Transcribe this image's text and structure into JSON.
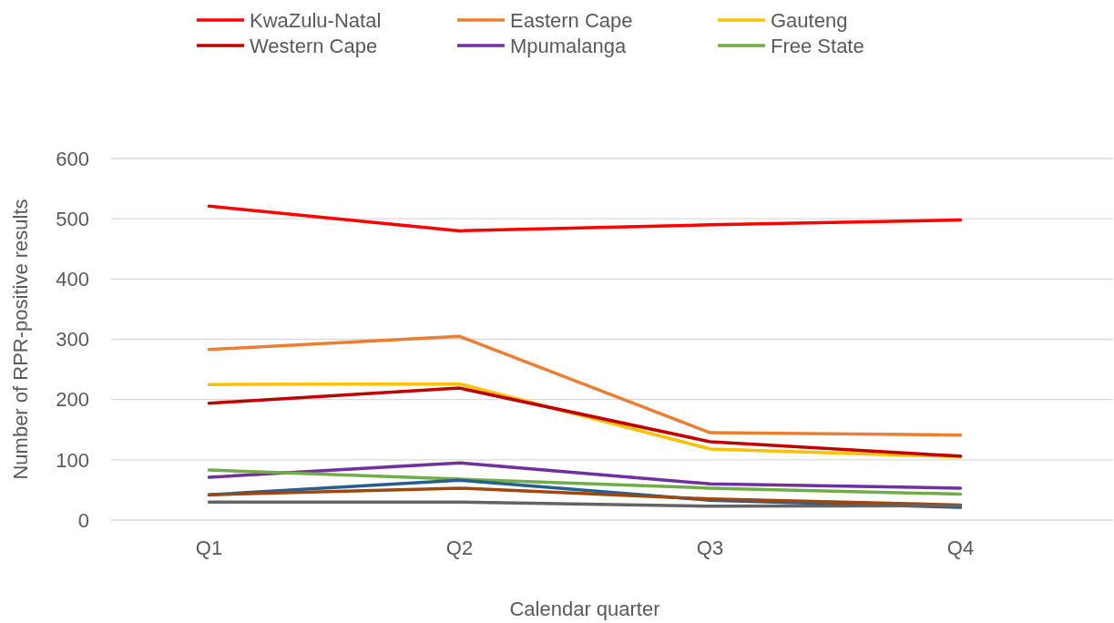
{
  "chart_data": {
    "type": "line",
    "xlabel": "Calendar quarter",
    "ylabel": "Number of RPR-positive results",
    "categories": [
      "Q1",
      "Q2",
      "Q3",
      "Q4"
    ],
    "ylim": [
      0,
      600
    ],
    "yticks": [
      0,
      100,
      200,
      300,
      400,
      500,
      600
    ],
    "grid": "y",
    "legend": "top",
    "marker": "none",
    "line_style": "solid",
    "series": [
      {
        "name": "KwaZulu-Natal",
        "color": "#ff0000",
        "values": [
          521,
          480,
          490,
          498
        ]
      },
      {
        "name": "Eastern Cape",
        "color": "#ed7d31",
        "values": [
          283,
          305,
          145,
          141
        ]
      },
      {
        "name": "Gauteng",
        "color": "#ffc000",
        "values": [
          225,
          226,
          118,
          105
        ]
      },
      {
        "name": "Western Cape",
        "color": "#c00000",
        "values": [
          194,
          219,
          130,
          106
        ]
      },
      {
        "name": "Mpumalanga",
        "color": "#7030a0",
        "values": [
          71,
          95,
          60,
          53
        ]
      },
      {
        "name": "Free State",
        "color": "#70ad47",
        "values": [
          83,
          68,
          53,
          43
        ]
      },
      {
        "color": "#255e91",
        "values": [
          42,
          66,
          33,
          21
        ]
      },
      {
        "color": "#9e480e",
        "values": [
          42,
          53,
          35,
          25
        ]
      },
      {
        "color": "#636363",
        "values": [
          30,
          30,
          23,
          24
        ]
      }
    ]
  }
}
